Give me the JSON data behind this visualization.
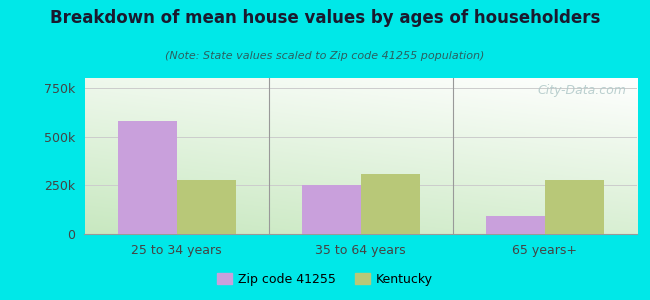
{
  "title": "Breakdown of mean house values by ages of householders",
  "subtitle": "(Note: State values scaled to Zip code 41255 population)",
  "categories": [
    "25 to 34 years",
    "35 to 64 years",
    "65 years+"
  ],
  "zip_values": [
    580000,
    250000,
    90000
  ],
  "state_values": [
    275000,
    310000,
    275000
  ],
  "zip_color": "#c9a0dc",
  "state_color": "#b8c878",
  "zip_label": "Zip code 41255",
  "state_label": "Kentucky",
  "background_outer": "#00e8e8",
  "ylim": [
    0,
    800000
  ],
  "yticks": [
    0,
    250000,
    500000,
    750000
  ],
  "ytick_labels": [
    "0",
    "250k",
    "500k",
    "750k"
  ],
  "bar_width": 0.32,
  "figsize": [
    6.5,
    3.0
  ],
  "dpi": 100,
  "title_color": "#1a1a2e",
  "subtitle_color": "#2a6060",
  "tick_color": "#444444",
  "grid_color": "#cccccc",
  "watermark_color": "#b0c8c8"
}
